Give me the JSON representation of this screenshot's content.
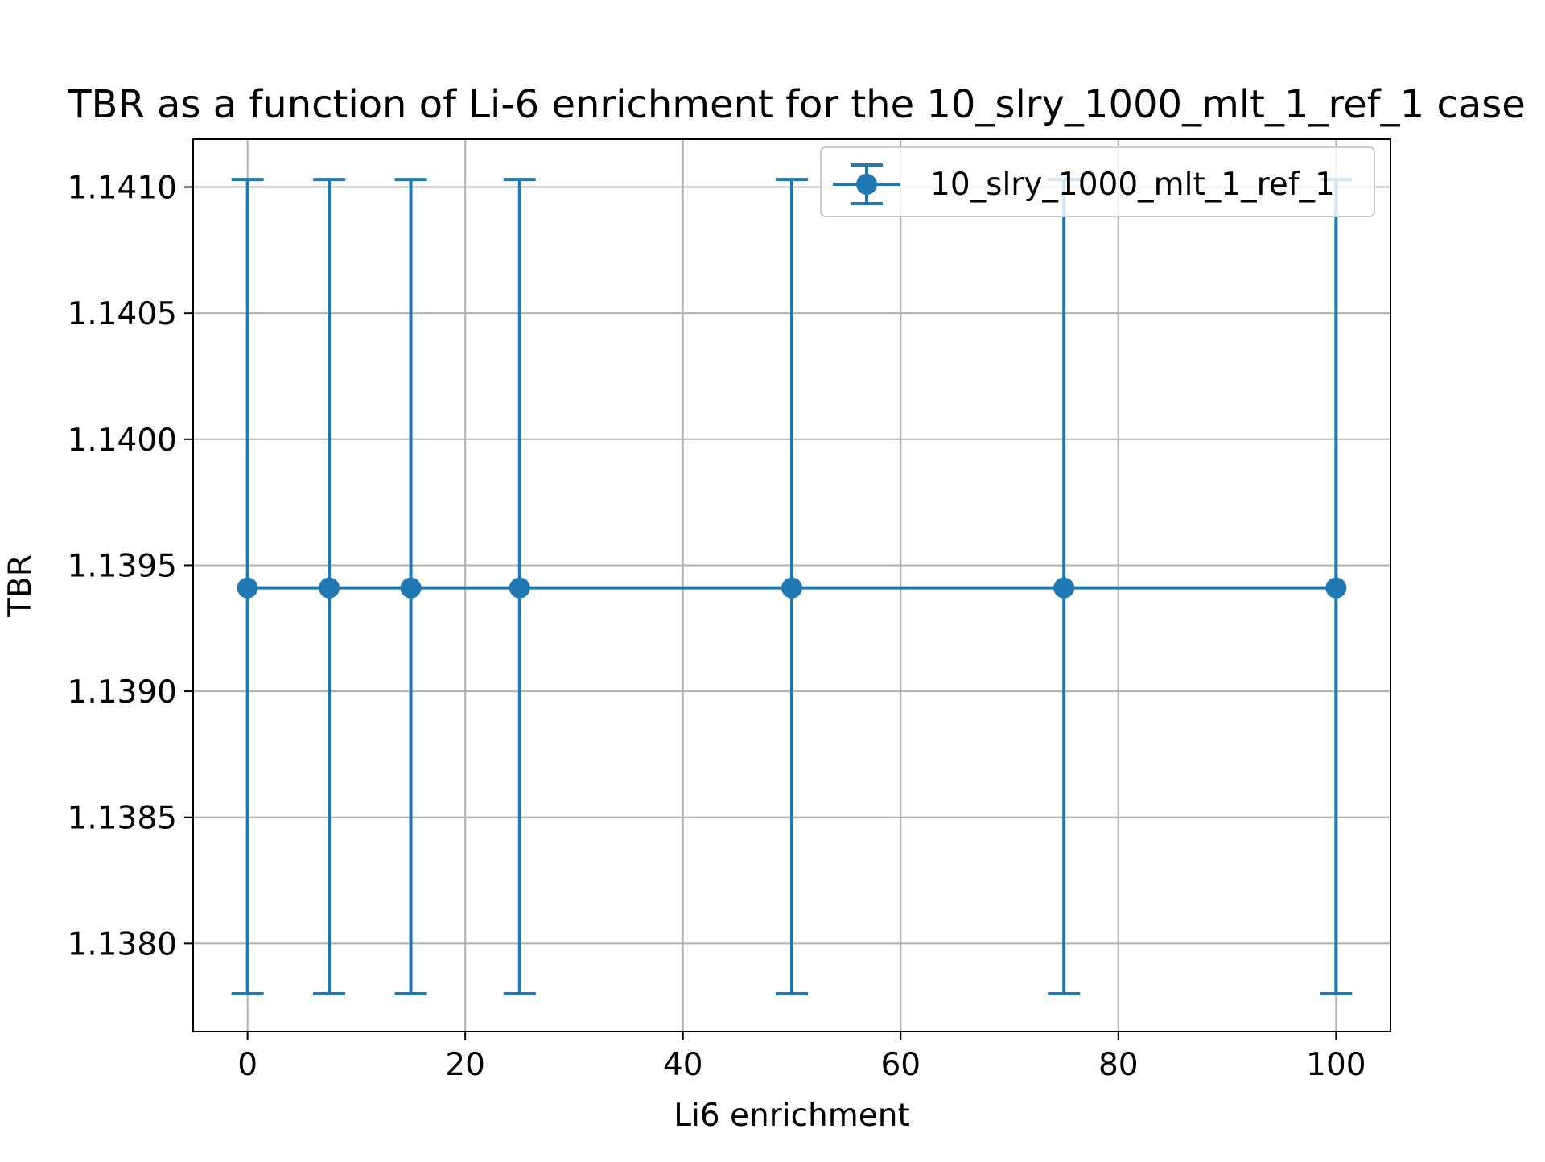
{
  "chart_data": {
    "type": "scatter",
    "title": "TBR as a function of Li-6 enrichment for the 10_slry_1000_mlt_1_ref_1 case",
    "xlabel": "Li6 enrichment",
    "ylabel": "TBR",
    "xlim": [
      -5,
      105
    ],
    "ylim": [
      1.13765,
      1.14119
    ],
    "xticks": [
      0,
      20,
      40,
      60,
      80,
      100
    ],
    "xtick_labels": [
      "0",
      "20",
      "40",
      "60",
      "80",
      "100"
    ],
    "yticks": [
      1.138,
      1.1385,
      1.139,
      1.1395,
      1.14,
      1.1405,
      1.141
    ],
    "ytick_labels": [
      "1.1380",
      "1.1385",
      "1.1390",
      "1.1395",
      "1.1400",
      "1.1405",
      "1.1410"
    ],
    "grid": true,
    "legend_position": "top-right",
    "series": [
      {
        "name": "10_slry_1000_mlt_1_ref_1",
        "color": "#1f77b4",
        "x": [
          0,
          7.5,
          15,
          25,
          50,
          75,
          100
        ],
        "y": [
          1.13941,
          1.13941,
          1.13941,
          1.13941,
          1.13941,
          1.13941,
          1.13941
        ],
        "yerr_lower": [
          1.1378,
          1.1378,
          1.1378,
          1.1378,
          1.1378,
          1.1378,
          1.1378
        ],
        "yerr_upper": [
          1.14103,
          1.14103,
          1.14103,
          1.14103,
          1.14103,
          1.14103,
          1.14103
        ]
      }
    ]
  }
}
